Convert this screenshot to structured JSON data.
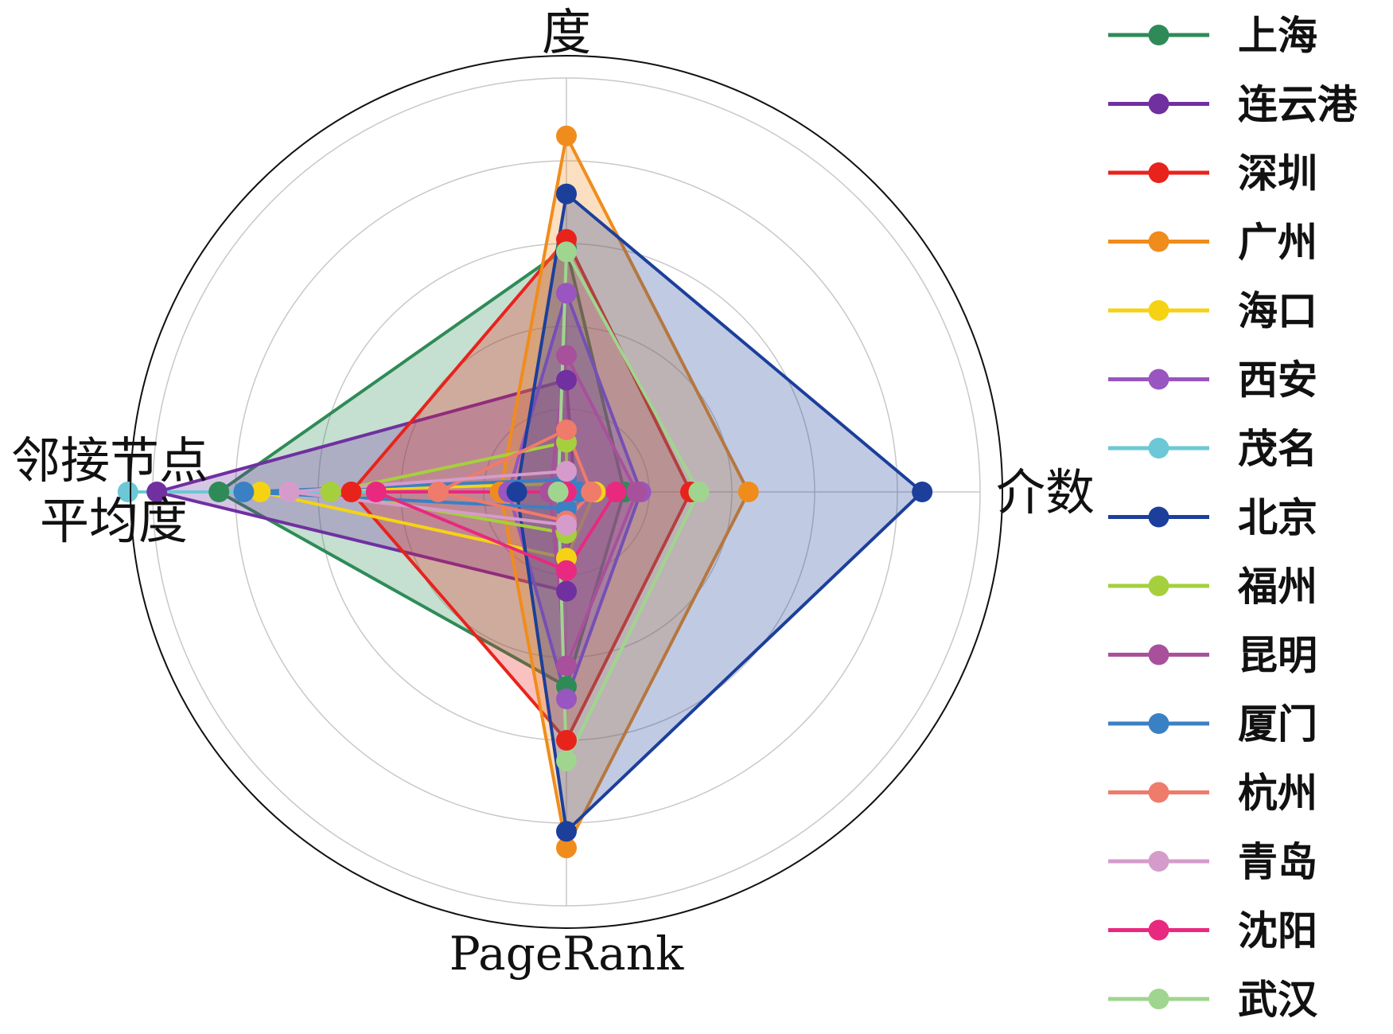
{
  "chart_data": {
    "type": "radar",
    "axes": [
      {
        "label": "度"
      },
      {
        "label": "介数"
      },
      {
        "label": "PageRank"
      },
      {
        "label": "邻接节点平均度",
        "lines": [
          "邻接节点",
          "平均度"
        ]
      }
    ],
    "rmax": 1.0,
    "grid_rings": [
      0.2,
      0.4,
      0.6,
      0.8,
      1.0
    ],
    "grid": true,
    "legend_position": "right",
    "series": [
      {
        "name": "上海",
        "color": "#2e8b57",
        "values": [
          0.59,
          0.14,
          0.47,
          0.84
        ],
        "fill": true
      },
      {
        "name": "连云港",
        "color": "#7030a0",
        "values": [
          0.27,
          0.02,
          0.24,
          0.99
        ],
        "fill": true
      },
      {
        "name": "深圳",
        "color": "#e8231c",
        "values": [
          0.61,
          0.3,
          0.6,
          0.52
        ],
        "fill": true
      },
      {
        "name": "广州",
        "color": "#f08c1c",
        "values": [
          0.86,
          0.44,
          0.86,
          0.16
        ],
        "fill": true
      },
      {
        "name": "海口",
        "color": "#f5d314",
        "values": [
          0.02,
          0.07,
          0.16,
          0.74
        ],
        "fill": false
      },
      {
        "name": "西安",
        "color": "#9955c0",
        "values": [
          0.48,
          0.18,
          0.5,
          0.14
        ],
        "fill": true
      },
      {
        "name": "茂名",
        "color": "#6cc8d6",
        "values": [
          0.0,
          0.02,
          0.0,
          1.06
        ],
        "fill": false
      },
      {
        "name": "北京",
        "color": "#1c3f9b",
        "values": [
          0.72,
          0.86,
          0.82,
          0.12
        ],
        "fill": true
      },
      {
        "name": "福州",
        "color": "#a6cf3e",
        "values": [
          0.12,
          0.0,
          0.1,
          0.57
        ],
        "fill": false
      },
      {
        "name": "昆明",
        "color": "#a8509c",
        "values": [
          0.33,
          0.17,
          0.42,
          0.04
        ],
        "fill": true
      },
      {
        "name": "厦门",
        "color": "#3a80c4",
        "values": [
          0.03,
          0.03,
          0.04,
          0.78
        ],
        "fill": false
      },
      {
        "name": "杭州",
        "color": "#ef7b6a",
        "values": [
          0.15,
          0.06,
          0.07,
          0.31
        ],
        "fill": false
      },
      {
        "name": "青岛",
        "color": "#d59ccb",
        "values": [
          0.05,
          0.0,
          0.08,
          0.67
        ],
        "fill": false
      },
      {
        "name": "沈阳",
        "color": "#e8297f",
        "values": [
          0.0,
          0.12,
          0.19,
          0.46
        ],
        "fill": false
      },
      {
        "name": "武汉",
        "color": "#a0d58f",
        "values": [
          0.58,
          0.32,
          0.65,
          0.02
        ],
        "fill": false
      }
    ]
  }
}
